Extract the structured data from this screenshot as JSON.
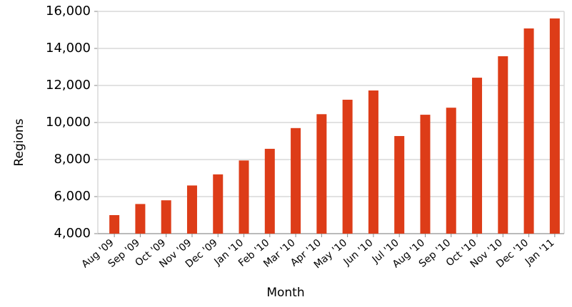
{
  "chart_data": {
    "type": "bar",
    "x_label": "Month",
    "y_label": "Regions",
    "categories": [
      "Aug '09",
      "Sep '09",
      "Oct '09",
      "Nov '09",
      "Dec '09",
      "Jan '10",
      "Feb '10",
      "Mar '10",
      "Apr '10",
      "May '10",
      "Jun '10",
      "Jul '10",
      "Aug '10",
      "Sep '10",
      "Oct '10",
      "Nov '10",
      "Dec '10",
      "Jan '11"
    ],
    "values": [
      5000,
      5600,
      5800,
      6600,
      7200,
      7950,
      8580,
      9700,
      10450,
      11230,
      11730,
      9270,
      10420,
      10800,
      12420,
      13580,
      15080,
      15620
    ],
    "color": "#dd3c18",
    "ylim": [
      4000,
      16000
    ],
    "yticks": [
      {
        "value": 4000,
        "label": "4,000"
      },
      {
        "value": 6000,
        "label": "6,000"
      },
      {
        "value": 8000,
        "label": "8,000"
      },
      {
        "value": 10000,
        "label": "10,000"
      },
      {
        "value": 12000,
        "label": "12,000"
      },
      {
        "value": 14000,
        "label": "14,000"
      },
      {
        "value": 16000,
        "label": "16,000"
      }
    ],
    "grid": true
  }
}
